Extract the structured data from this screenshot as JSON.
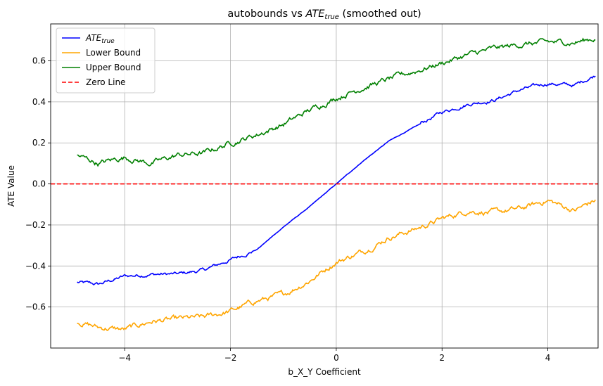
{
  "chart_data": {
    "type": "line",
    "title_main": "autobounds vs ",
    "title_math": "ATE",
    "title_math_sub": "true",
    "title_tail": " (smoothed out)",
    "xlabel": "b_X_Y Coefficient",
    "ylabel": "ATE Value",
    "xlim": [
      -5.4,
      10.0
    ],
    "ylim": [
      -0.8,
      0.78
    ],
    "xticks": [
      -4,
      -2,
      0,
      2,
      4
    ],
    "xtick_labels": [
      "−4",
      "−2",
      "0",
      "2",
      "4"
    ],
    "yticks": [
      -0.6,
      -0.4,
      -0.2,
      0.0,
      0.2,
      0.4,
      0.6
    ],
    "ytick_labels": [
      "−0.6",
      "−0.4",
      "−0.2",
      "0.0",
      "0.2",
      "0.4",
      "0.6"
    ],
    "grid": true,
    "legend_position": "top-left",
    "x_range": [
      -4.9,
      4.9
    ],
    "series": [
      {
        "name_math": "ATE",
        "name_sub": "true",
        "color": "#0000ff",
        "style": "solid",
        "x": [
          -4.9,
          -4.5,
          -4.0,
          -3.5,
          -3.0,
          -2.5,
          -2.0,
          -1.5,
          -1.0,
          -0.5,
          0.0,
          0.5,
          1.0,
          1.5,
          2.0,
          2.5,
          3.0,
          3.5,
          4.0,
          4.5,
          4.9
        ],
        "values": [
          -0.48,
          -0.49,
          -0.45,
          -0.44,
          -0.44,
          -0.42,
          -0.37,
          -0.32,
          -0.21,
          -0.11,
          0.0,
          0.11,
          0.21,
          0.28,
          0.35,
          0.39,
          0.41,
          0.46,
          0.49,
          0.48,
          0.53
        ]
      },
      {
        "name": "Lower Bound",
        "color": "#ffa500",
        "style": "solid",
        "x": [
          -4.9,
          -4.5,
          -4.0,
          -3.5,
          -3.0,
          -2.5,
          -2.0,
          -1.5,
          -1.0,
          -0.5,
          0.0,
          0.5,
          1.0,
          1.5,
          2.0,
          2.5,
          3.0,
          3.5,
          4.0,
          4.5,
          4.9
        ],
        "values": [
          -0.67,
          -0.7,
          -0.71,
          -0.67,
          -0.66,
          -0.65,
          -0.62,
          -0.57,
          -0.54,
          -0.47,
          -0.38,
          -0.33,
          -0.26,
          -0.22,
          -0.17,
          -0.13,
          -0.14,
          -0.12,
          -0.08,
          -0.13,
          -0.08
        ]
      },
      {
        "name": "Upper Bound",
        "color": "#008000",
        "style": "solid",
        "x": [
          -4.9,
          -4.5,
          -4.0,
          -3.5,
          -3.0,
          -2.5,
          -2.0,
          -1.5,
          -1.0,
          -0.5,
          0.0,
          0.5,
          1.0,
          1.5,
          2.0,
          2.5,
          3.0,
          3.5,
          4.0,
          4.5,
          4.9
        ],
        "values": [
          0.14,
          0.1,
          0.13,
          0.1,
          0.14,
          0.15,
          0.2,
          0.24,
          0.29,
          0.36,
          0.42,
          0.47,
          0.51,
          0.55,
          0.59,
          0.63,
          0.66,
          0.68,
          0.69,
          0.69,
          0.71
        ]
      },
      {
        "name": "Zero Line",
        "color": "#ff0000",
        "style": "dashed",
        "x": [
          -5.4,
          10.0
        ],
        "values": [
          0.0,
          0.0
        ]
      }
    ]
  }
}
